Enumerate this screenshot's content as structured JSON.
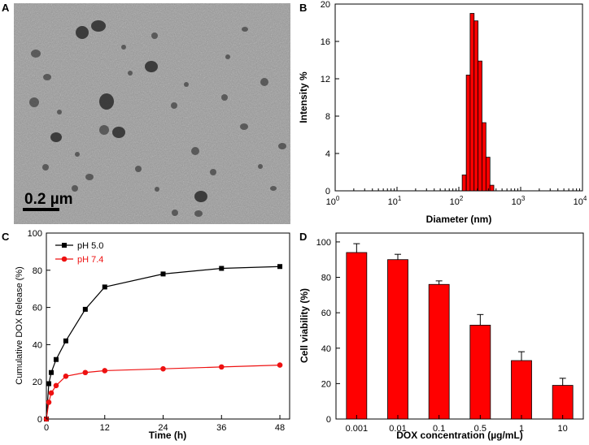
{
  "panels": {
    "a": {
      "letter": "A",
      "scale_bar_label": "0.2 µm"
    },
    "b": {
      "letter": "B"
    },
    "c": {
      "letter": "C"
    },
    "d": {
      "letter": "D"
    }
  },
  "colors": {
    "bar_red": "#ff0000",
    "line_black": "#000000",
    "line_red": "#ee1111",
    "tem_background": "#9a9a9a",
    "particle": "#2a2a2a"
  },
  "chart_data": [
    {
      "panel": "B",
      "type": "bar",
      "xscale": "log",
      "xlabel": "Diameter (nm)",
      "ylabel": "Intensity %",
      "xlim": [
        1,
        10000
      ],
      "ylim": [
        0,
        20
      ],
      "xticks": [
        {
          "base": "10",
          "exp": "0",
          "value": 1
        },
        {
          "base": "10",
          "exp": "1",
          "value": 10
        },
        {
          "base": "10",
          "exp": "2",
          "value": 100
        },
        {
          "base": "10",
          "exp": "3",
          "value": 1000
        },
        {
          "base": "10",
          "exp": "4",
          "value": 10000
        }
      ],
      "yticks": [
        0,
        4,
        8,
        12,
        16,
        20
      ],
      "diameters": [
        122,
        142,
        164,
        190,
        220,
        255,
        296,
        342
      ],
      "values": [
        1.7,
        12.4,
        19.0,
        18.2,
        13.9,
        7.3,
        3.6,
        0.6
      ]
    },
    {
      "panel": "C",
      "type": "line",
      "xlabel": "Time (h)",
      "ylabel": "Cumulative DOX Release (%)",
      "xlim": [
        0,
        50
      ],
      "ylim": [
        0,
        100
      ],
      "xticks": [
        0,
        12,
        24,
        36,
        48
      ],
      "yticks": [
        0,
        20,
        40,
        60,
        80,
        100
      ],
      "legend_position": "top-left",
      "series": [
        {
          "name": "pH 5.0",
          "color": "#000000",
          "marker": "square",
          "x": [
            0,
            0.5,
            1,
            2,
            4,
            8,
            12,
            24,
            36,
            48
          ],
          "y": [
            0,
            19,
            25,
            32,
            42,
            59,
            71,
            78,
            81,
            82
          ]
        },
        {
          "name": "pH 7.4",
          "color": "#ee1111",
          "marker": "circle",
          "x": [
            0,
            0.5,
            1,
            2,
            4,
            8,
            12,
            24,
            36,
            48
          ],
          "y": [
            0,
            9,
            14,
            18,
            23,
            25,
            26,
            27,
            28,
            29
          ]
        }
      ]
    },
    {
      "panel": "D",
      "type": "bar",
      "xlabel": "DOX concentration (µg/mL)",
      "ylabel": "Cell viability (%)",
      "ylim": [
        0,
        105
      ],
      "yticks": [
        0,
        20,
        40,
        60,
        80,
        100
      ],
      "categories": [
        "0.001",
        "0.01",
        "0.1",
        "0.5",
        "1",
        "10"
      ],
      "values": [
        94,
        90,
        76,
        53,
        33,
        19
      ],
      "errors": [
        5,
        3,
        2,
        6,
        5,
        4
      ]
    }
  ]
}
